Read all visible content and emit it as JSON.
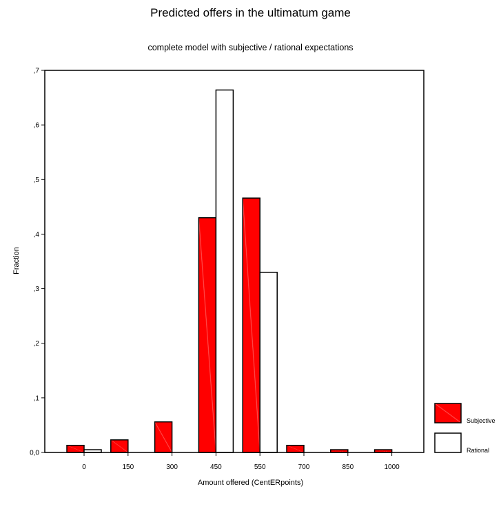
{
  "chart_data": {
    "type": "bar",
    "title": "Predicted offers in the ultimatum game",
    "subtitle": "complete model with subjective / rational expectations",
    "xlabel": "Amount offered (CentERpoints)",
    "ylabel": "Fraction",
    "categories": [
      "0",
      "150",
      "300",
      "450",
      "550",
      "700",
      "850",
      "1000"
    ],
    "ylim": [
      0,
      0.7
    ],
    "yticks": [
      0,
      0.1,
      0.2,
      0.3,
      0.4,
      0.5,
      0.6,
      0.7
    ],
    "ytick_labels": [
      "0,0",
      ",1",
      ",2",
      ",3",
      ",4",
      ",5",
      ",6",
      ",7"
    ],
    "grid": false,
    "legend_position": "bottom-right",
    "series": [
      {
        "name": "Subjective",
        "color": "#ff0000",
        "values": [
          0.013,
          0.023,
          0.056,
          0.43,
          0.466,
          0.013,
          0.005,
          0.005
        ]
      },
      {
        "name": "Rational",
        "color": "#ffffff",
        "values": [
          0.005,
          0.0,
          0.0,
          0.664,
          0.33,
          0.0,
          0.0,
          0.0
        ]
      }
    ]
  }
}
